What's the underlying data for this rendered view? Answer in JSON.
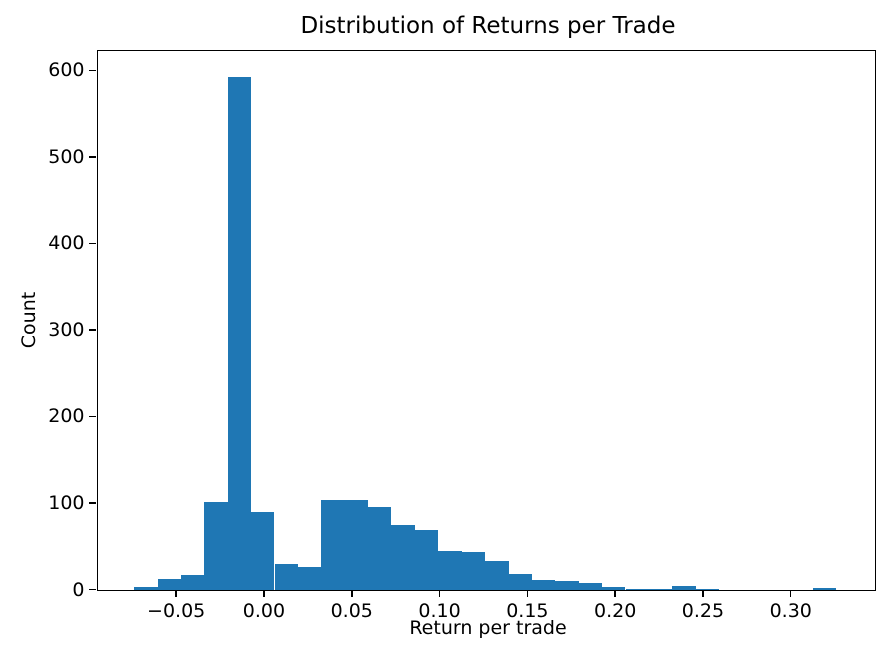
{
  "chart_data": {
    "type": "bar",
    "subtype": "histogram",
    "title": "Distribution of Returns per Trade",
    "xlabel": "Return per trade",
    "ylabel": "Count",
    "bar_color": "#1f77b4",
    "axis_color": "#000000",
    "grid": false,
    "legend": null,
    "xlim": [
      -0.0948,
      0.3477
    ],
    "ylim": [
      0,
      623
    ],
    "x_ticks": [
      -0.05,
      0.0,
      0.05,
      0.1,
      0.15,
      0.2,
      0.25,
      0.3
    ],
    "x_tick_labels": [
      "−0.05",
      "0.00",
      "0.05",
      "0.10",
      "0.15",
      "0.20",
      "0.25",
      "0.30"
    ],
    "y_ticks": [
      0,
      100,
      200,
      300,
      400,
      500,
      600
    ],
    "y_tick_labels": [
      "0",
      "100",
      "200",
      "300",
      "400",
      "500",
      "600"
    ],
    "bin_edges": [
      -0.0739,
      -0.0606,
      -0.0473,
      -0.034,
      -0.0206,
      -0.0073,
      0.006,
      0.0193,
      0.0327,
      0.046,
      0.0593,
      0.0726,
      0.086,
      0.0993,
      0.1126,
      0.1259,
      0.1393,
      0.1526,
      0.1659,
      0.1792,
      0.1926,
      0.2059,
      0.2192,
      0.2325,
      0.2459,
      0.2592,
      0.2725,
      0.2858,
      0.2992,
      0.3125,
      0.3258
    ],
    "counts": [
      3,
      12,
      17,
      101,
      592,
      90,
      29,
      26,
      104,
      104,
      95,
      75,
      69,
      44,
      43,
      33,
      18,
      11,
      10,
      7,
      3,
      1,
      1,
      4,
      1,
      0,
      0,
      0,
      0,
      2
    ]
  }
}
